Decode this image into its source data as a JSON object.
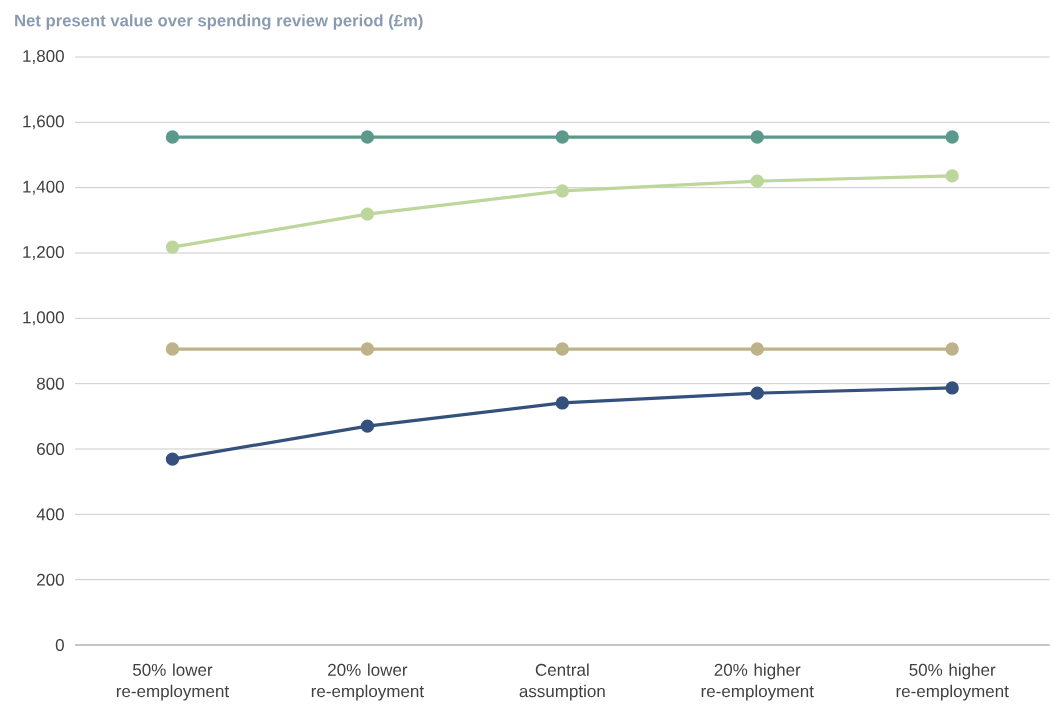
{
  "chart_data": {
    "type": "line",
    "title": "Net present value over spending review period (£m)",
    "categories": [
      "50% lower re-employment",
      "20% lower re-employment",
      "Central assumption",
      "20% higher re-employment",
      "50% higher re-employment"
    ],
    "series": [
      {
        "color": "#5b9a8b",
        "values": [
          1555,
          1555,
          1555,
          1555,
          1555
        ]
      },
      {
        "color": "#bcd69b",
        "values": [
          1218,
          1319,
          1390,
          1420,
          1436
        ]
      },
      {
        "color": "#bdb28a",
        "values": [
          906,
          906,
          906,
          906,
          906
        ]
      },
      {
        "color": "#34507c",
        "values": [
          569,
          670,
          741,
          771,
          787
        ]
      }
    ],
    "ylim": [
      0,
      1800
    ],
    "yticks": [
      0,
      200,
      400,
      600,
      800,
      {
        "value": 1000,
        "label": "1,000"
      },
      {
        "value": 1200,
        "label": "1,200"
      },
      {
        "value": 1400,
        "label": "1,400"
      },
      {
        "value": 1600,
        "label": "1,600"
      },
      {
        "value": 1800,
        "label": "1,800"
      }
    ],
    "grid": "y",
    "marker": "circle",
    "line_style": "solid"
  }
}
